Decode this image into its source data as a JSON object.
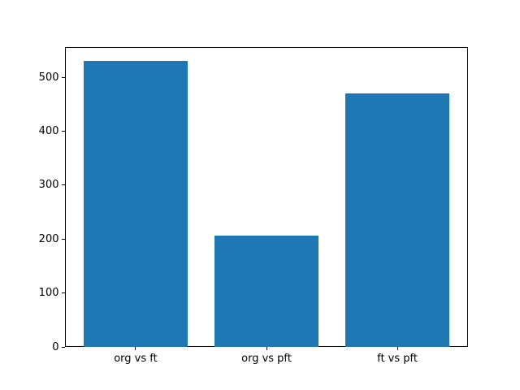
{
  "figure": {
    "background": "#ffffff"
  },
  "chart_data": {
    "type": "bar",
    "categories": [
      "org vs ft",
      "org vs pft",
      "ft vs pft"
    ],
    "values": [
      530,
      207,
      470
    ],
    "title": "",
    "xlabel": "",
    "ylabel": "",
    "bar_color": "#1f77b4",
    "axis_color": "#000000",
    "tick_label_color": "#000000",
    "yticks": [
      0,
      100,
      200,
      300,
      400,
      500
    ],
    "ylim": [
      0,
      556.5
    ],
    "xlim": [
      -0.54,
      2.54
    ],
    "bar_width": 0.8,
    "grid": false,
    "legend": "none"
  }
}
